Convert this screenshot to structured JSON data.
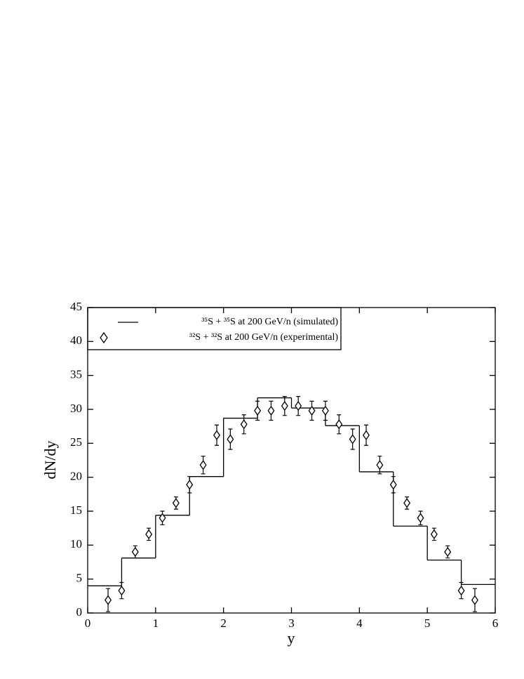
{
  "chart_data": {
    "type": "histogram",
    "x_label": "y",
    "y_label": "dN/dy",
    "xlim": [
      0,
      6
    ],
    "xticks": [
      0,
      1,
      2,
      3,
      4,
      5,
      6
    ],
    "ylim": [
      0,
      45
    ],
    "yticks": [
      0,
      5,
      10,
      15,
      20,
      25,
      30,
      35,
      40,
      45
    ],
    "legend": "upper left",
    "series": [
      {
        "type": "step",
        "name": "³⁵S + ³⁵S at 200 GeV/n (simulated)",
        "color": "#000000",
        "bins": [
          0,
          0.5,
          1,
          1.5,
          2,
          2.5,
          3,
          3.5,
          4,
          4.5,
          5,
          5.5,
          6
        ],
        "values": [
          4,
          8.1,
          14.4,
          20.1,
          28.7,
          31.7,
          30.2,
          27.6,
          20.8,
          12.8,
          7.8,
          4.2
        ]
      },
      {
        "type": "scatter",
        "name": "³²S + ³²S at 200 GeV/n (experimental)",
        "color": "#000000",
        "x": [
          0.3,
          0.5,
          0.7,
          0.9,
          1.1,
          1.3,
          1.5,
          1.7,
          1.9,
          2.1,
          2.3,
          2.5,
          2.7,
          2.9,
          3.1,
          3.3,
          3.5,
          3.7,
          3.9,
          4.1,
          4.3,
          4.5,
          4.7,
          4.9,
          5.1,
          5.3,
          5.5,
          5.7
        ],
        "values": [
          1.9,
          3.3,
          9.0,
          11.6,
          14.0,
          16.2,
          18.9,
          21.8,
          26.2,
          25.6,
          27.8,
          29.8,
          29.8,
          30.5,
          30.5,
          29.8,
          29.8,
          27.8,
          25.6,
          26.2,
          21.8,
          18.9,
          16.2,
          14.0,
          11.6,
          9.0,
          3.3,
          1.9
        ],
        "errors": [
          1.7,
          1.2,
          0.9,
          0.9,
          1.0,
          0.9,
          1.2,
          1.3,
          1.5,
          1.5,
          1.4,
          1.4,
          1.4,
          1.4,
          1.4,
          1.4,
          1.4,
          1.4,
          1.5,
          1.5,
          1.3,
          1.2,
          0.9,
          1.0,
          0.9,
          0.9,
          1.2,
          1.7
        ]
      }
    ]
  }
}
